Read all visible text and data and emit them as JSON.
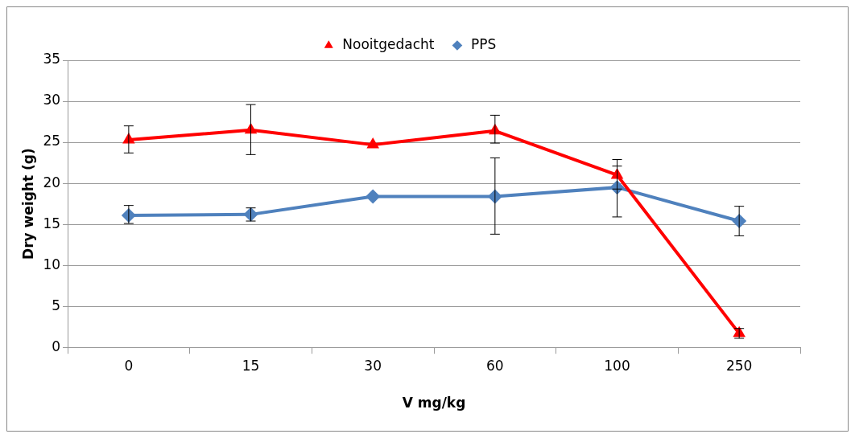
{
  "chart_data": {
    "type": "line",
    "xlabel": "V mg/kg",
    "ylabel": "Dry weight (g)",
    "categories": [
      "0",
      "15",
      "30",
      "60",
      "100",
      "250"
    ],
    "series": [
      {
        "name": "Nooitgedacht",
        "color": "#ff0000",
        "marker": "triangle",
        "values": [
          25.3,
          26.5,
          24.7,
          26.4,
          21,
          1.7
        ],
        "errors": [
          [
            23.7,
            27
          ],
          [
            23.5,
            29.6
          ],
          null,
          [
            24.9,
            28.3
          ],
          [
            19.3,
            22.9
          ],
          [
            1.1,
            2.3
          ]
        ]
      },
      {
        "name": "PPS",
        "color": "#4f81bd",
        "marker": "diamond",
        "values": [
          16.1,
          16.2,
          18.4,
          18.4,
          19.5,
          15.4
        ],
        "errors": [
          [
            15.1,
            17.3
          ],
          [
            15.4,
            17
          ],
          null,
          [
            13.8,
            23.1
          ],
          [
            15.9,
            22.1
          ],
          [
            13.6,
            17.2
          ]
        ]
      }
    ],
    "ylim": [
      0,
      35
    ],
    "yticks": [
      0,
      5,
      10,
      15,
      20,
      25,
      30,
      35
    ],
    "grid": "y",
    "legend": "top"
  }
}
